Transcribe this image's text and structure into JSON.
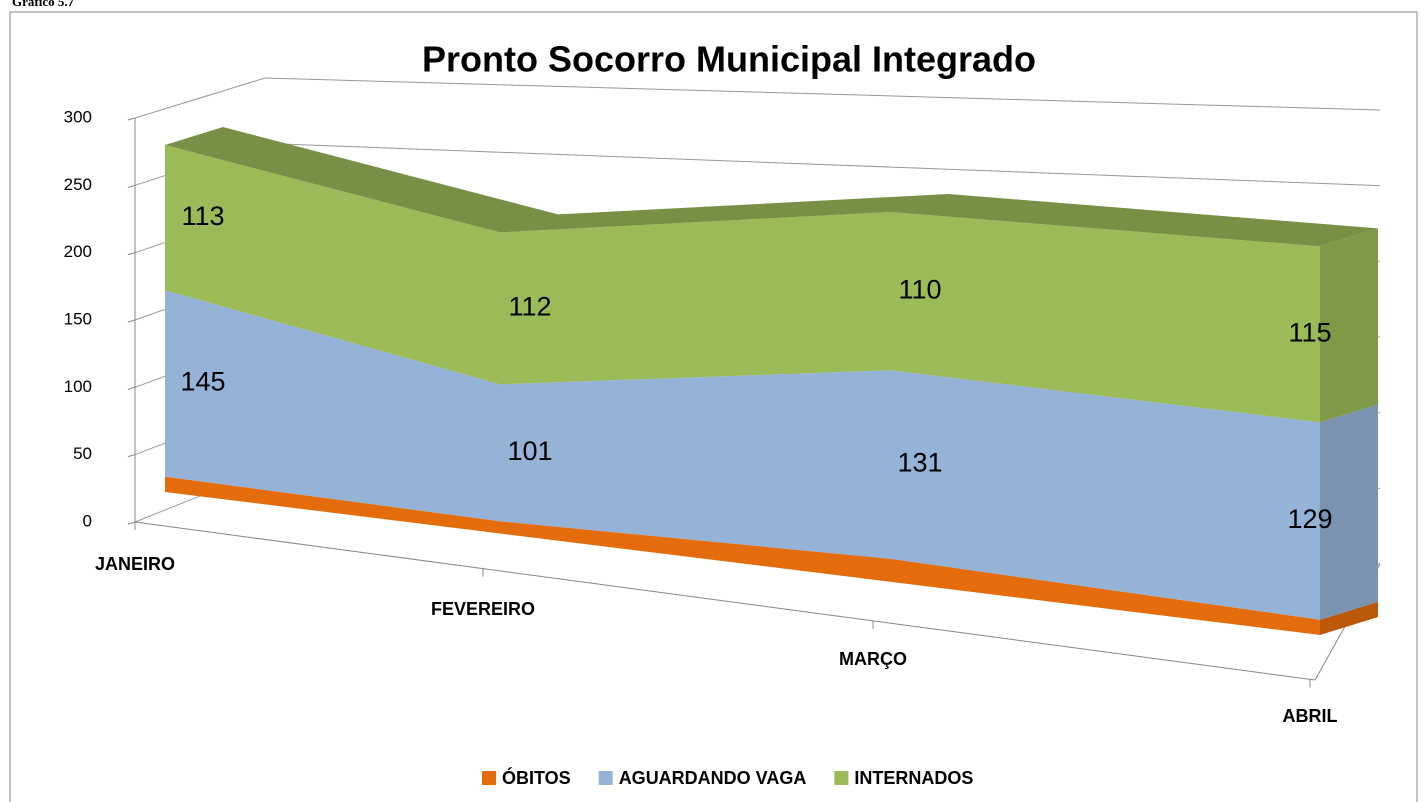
{
  "caption": "Gráfico 5.7",
  "chart_data": {
    "type": "area3d_stacked",
    "title": "Pronto Socorro Municipal Integrado",
    "categories": [
      "JANEIRO",
      "FEVEREIRO",
      "MARÇO",
      "ABRIL"
    ],
    "series": [
      {
        "name": "ÓBITOS",
        "color": "#e46c0a",
        "values": [
          12,
          9,
          16,
          10
        ]
      },
      {
        "name": "AGUARDANDO VAGA",
        "color": "#95b3d7",
        "values": [
          145,
          101,
          131,
          129
        ]
      },
      {
        "name": "INTERNADOS",
        "color": "#9bbb59",
        "values": [
          113,
          112,
          110,
          115
        ]
      }
    ],
    "ylim": [
      0,
      300
    ],
    "yticks": [
      0,
      50,
      100,
      150,
      200,
      250,
      300
    ],
    "grid": true,
    "legend": "bottom"
  }
}
